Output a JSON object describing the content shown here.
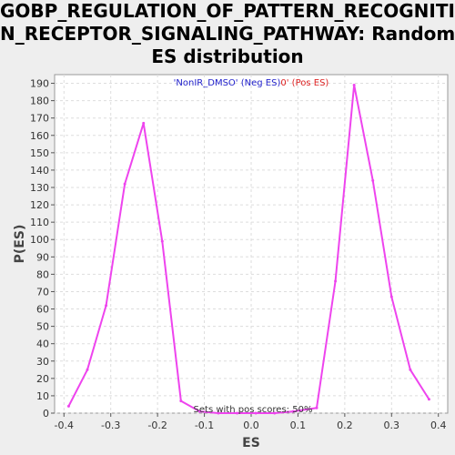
{
  "title_lines": [
    "GOBP_REGULATION_OF_PATTERN_RECOGNITIO",
    "N_RECEPTOR_SIGNALING_PATHWAY: Random",
    "ES distribution"
  ],
  "chart_data": {
    "type": "line",
    "title": "GOBP_REGULATION_OF_PATTERN_RECOGNITION_RECEPTOR_SIGNALING_PATHWAY: Random ES distribution",
    "xlabel": "ES",
    "ylabel": "P(ES)",
    "xlim": [
      -0.42,
      0.42
    ],
    "ylim": [
      0,
      195
    ],
    "xticks": [
      -0.4,
      -0.3,
      -0.2,
      -0.1,
      0.0,
      0.1,
      0.2,
      0.3,
      0.4
    ],
    "xtick_labels": [
      "-0.4",
      "-0.3",
      "-0.2",
      "-0.1",
      "0.0",
      "0.1",
      "0.2",
      "0.3",
      "0.4"
    ],
    "yticks": [
      0,
      10,
      20,
      30,
      40,
      50,
      60,
      70,
      80,
      90,
      100,
      110,
      120,
      130,
      140,
      150,
      160,
      170,
      180,
      190
    ],
    "grid": true,
    "legend": {
      "neg": "'NonIR_DMSO' (Neg ES)",
      "zero": "0",
      "pos": "' (Pos ES)"
    },
    "colors": {
      "line": "#ee44ee",
      "neg_label": "#2222cc",
      "pos_label": "#dd2222",
      "grid": "#dddddd",
      "plot_bg": "#ffffff"
    },
    "annotation": "Sets with pos scores: 50%",
    "series": [
      {
        "x": [
          -0.39,
          -0.35,
          -0.31,
          -0.27,
          -0.23,
          -0.19,
          -0.15,
          -0.11,
          -0.07,
          -0.03,
          0.01,
          0.05,
          0.09,
          0.14,
          0.18,
          0.22,
          0.26,
          0.3,
          0.34,
          0.38
        ],
        "values": [
          4,
          25,
          62,
          132,
          167,
          99,
          7,
          1,
          0,
          0,
          0,
          0,
          1,
          3,
          76,
          189,
          134,
          67,
          25,
          8
        ]
      }
    ]
  }
}
